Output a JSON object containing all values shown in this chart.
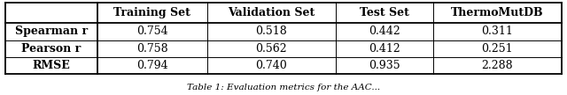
{
  "col_headers": [
    "",
    "Training Set",
    "Validation Set",
    "Test Set",
    "ThermoMutDB"
  ],
  "rows": [
    [
      "Spearman r",
      "0.754",
      "0.518",
      "0.442",
      "0.311"
    ],
    [
      "Pearson r",
      "0.758",
      "0.562",
      "0.412",
      "0.251"
    ],
    [
      "RMSE",
      "0.794",
      "0.740",
      "0.935",
      "2.288"
    ]
  ],
  "caption": "Table 1: Evaluation metrics for the AAC...",
  "bg_color": "#ffffff",
  "text_color": "#000000",
  "header_fontsize": 9.0,
  "cell_fontsize": 9.0,
  "caption_fontsize": 7.5
}
